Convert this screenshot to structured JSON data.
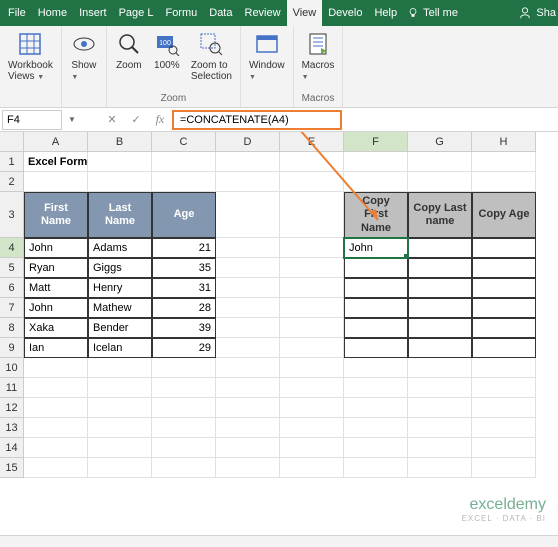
{
  "menu": {
    "items": [
      "File",
      "Home",
      "Insert",
      "Page L",
      "Formu",
      "Data",
      "Review",
      "View",
      "Develo",
      "Help"
    ],
    "active": "View",
    "tellme": "Tell me",
    "share": "Sha"
  },
  "ribbon": {
    "groups": [
      {
        "label": "",
        "buttons": [
          {
            "label": "Workbook\nViews",
            "icon": "grid",
            "dropdown": true
          }
        ]
      },
      {
        "label": "",
        "buttons": [
          {
            "label": "Show",
            "icon": "eye",
            "dropdown": true
          }
        ]
      },
      {
        "label": "Zoom",
        "buttons": [
          {
            "label": "Zoom",
            "icon": "zoom"
          },
          {
            "label": "100%",
            "icon": "100"
          },
          {
            "label": "Zoom to\nSelection",
            "icon": "zoomsel"
          }
        ]
      },
      {
        "label": "",
        "buttons": [
          {
            "label": "Window",
            "icon": "window",
            "dropdown": true
          }
        ]
      },
      {
        "label": "Macros",
        "buttons": [
          {
            "label": "Macros",
            "icon": "macros",
            "dropdown": true
          }
        ]
      }
    ]
  },
  "namebox": "F4",
  "formula": "=CONCATENATE(A4)",
  "columns": [
    "A",
    "B",
    "C",
    "D",
    "E",
    "F",
    "G",
    "H"
  ],
  "active_col": "F",
  "active_row": 4,
  "title_text": "Excel Formula to Copy Cell value to Another Cell",
  "table1": {
    "headers": [
      "First Name",
      "Last Name",
      "Age"
    ],
    "rows": [
      [
        "John",
        "Adams",
        "21"
      ],
      [
        "Ryan",
        "Giggs",
        "35"
      ],
      [
        "Matt",
        "Henry",
        "31"
      ],
      [
        "John",
        "Mathew",
        "28"
      ],
      [
        "Xaka",
        "Bender",
        "39"
      ],
      [
        "Ian",
        "Icelan",
        "29"
      ]
    ]
  },
  "table2": {
    "headers": [
      "Copy First Name",
      "Copy Last name",
      "Copy Age"
    ],
    "active_value": "John"
  },
  "watermark": {
    "title": "exceldemy",
    "sub": "EXCEL · DATA · BI"
  },
  "colors": {
    "green": "#217346",
    "orange": "#ed7d31",
    "hdr_blue": "#8497b0",
    "hdr_gray": "#bfbfbf"
  }
}
